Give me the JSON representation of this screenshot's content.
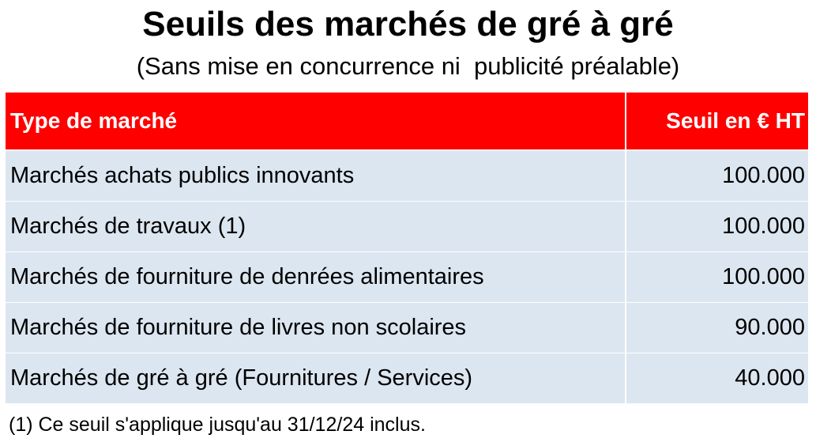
{
  "title": "Seuils des marchés de gré à gré",
  "subtitle": "(Sans mise en concurrence ni  publicité préalable)",
  "table": {
    "headers": {
      "type": "Type de marché",
      "seuil": "Seuil en € HT"
    },
    "rows": [
      {
        "type": "Marchés achats publics innovants",
        "seuil": "100.000"
      },
      {
        "type": "Marchés de travaux (1)",
        "seuil": "100.000"
      },
      {
        "type": "Marchés de fourniture de denrées alimentaires",
        "seuil": "100.000"
      },
      {
        "type": "Marchés de fourniture de livres non scolaires",
        "seuil": "90.000"
      },
      {
        "type": "Marchés de gré à gré (Fournitures / Services)",
        "seuil": "40.000"
      }
    ]
  },
  "footnote": "(1) Ce seuil s'applique jusqu'au 31/12/24 inclus.",
  "colors": {
    "header_background": "#ff0000",
    "header_text": "#ffffff",
    "row_background": "#dce6f0"
  }
}
